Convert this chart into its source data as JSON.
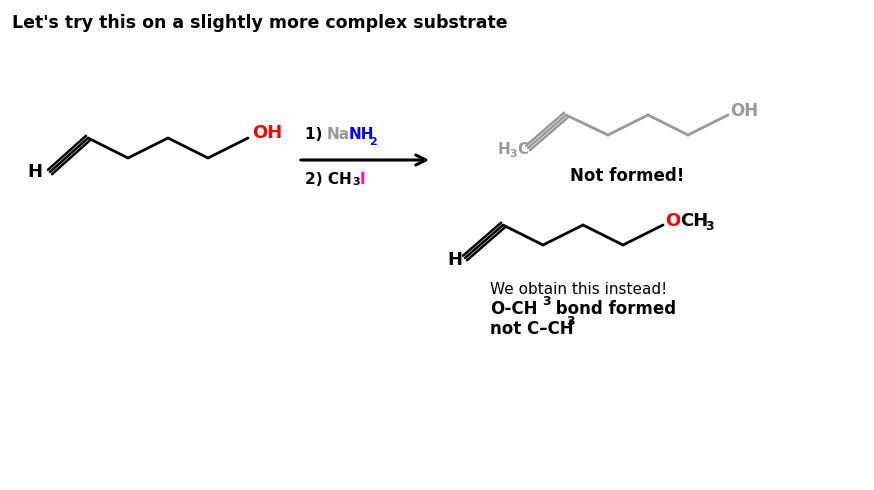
{
  "title": "Let's try this on a slightly more complex substrate",
  "background_color": "#ffffff",
  "title_fontsize": 12.5,
  "title_fontweight": "bold",
  "not_formed_label": "Not formed!",
  "obtain_label": "We obtain this instead!",
  "bond_label_line1": "O-CH",
  "bond_label_sub": "3",
  "bond_label_line1_suffix": " bond formed",
  "bond_label_line2": "not C–CH",
  "bond_label_line2_sub": "3",
  "gray": "#999999",
  "red": "#ff0000",
  "blue": "#0000ff",
  "magenta": "#ff00ff",
  "black": "#000000"
}
